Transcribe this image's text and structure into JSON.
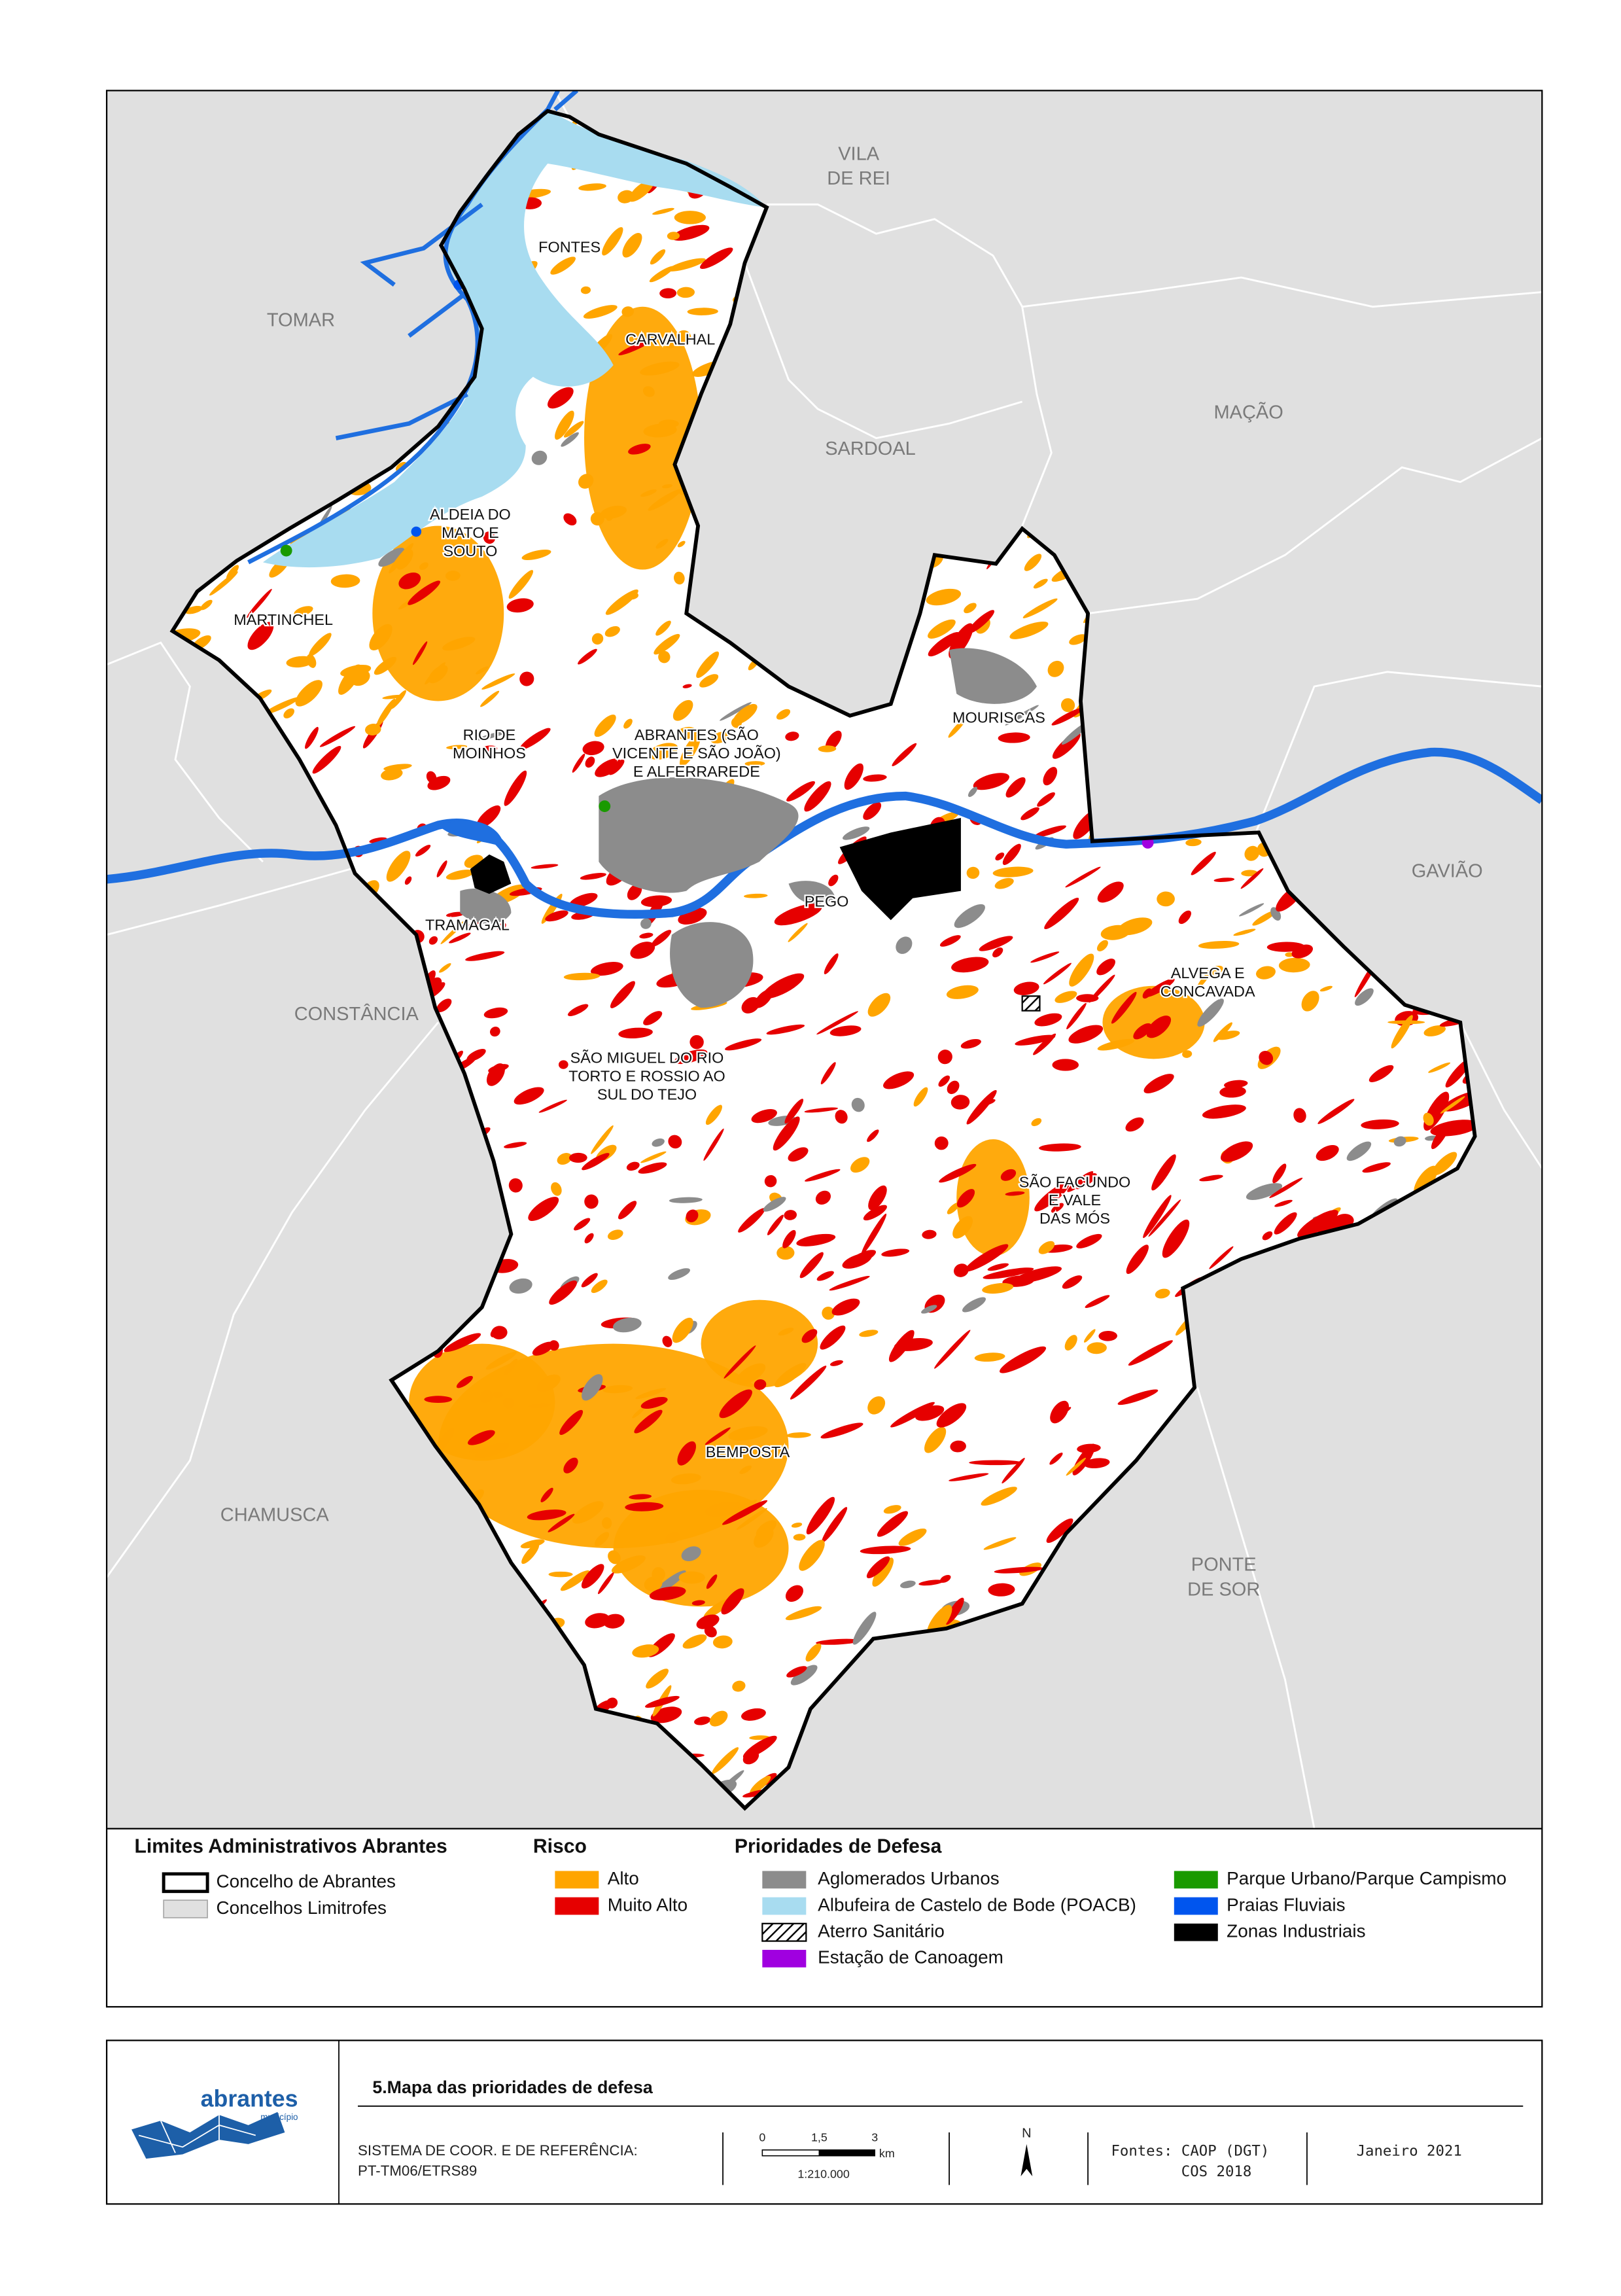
{
  "map": {
    "neighbors": [
      {
        "lines": [
          "TOMAR"
        ]
      },
      {
        "lines": [
          "VILA",
          "DE REI"
        ]
      },
      {
        "lines": [
          "MAÇÃO"
        ]
      },
      {
        "lines": [
          "SARDOAL"
        ]
      },
      {
        "lines": [
          "GAVIÃO"
        ]
      },
      {
        "lines": [
          "CONSTÂNCIA"
        ]
      },
      {
        "lines": [
          "CHAMUSCA"
        ]
      },
      {
        "lines": [
          "PONTE",
          "DE SOR"
        ]
      }
    ],
    "parishes": [
      {
        "lines": [
          "FONTES"
        ]
      },
      {
        "lines": [
          "CARVALHAL"
        ]
      },
      {
        "lines": [
          "ALDEIA DO",
          "MATO E",
          "SOUTO"
        ]
      },
      {
        "lines": [
          "MARTINCHEL"
        ]
      },
      {
        "lines": [
          "RIO DE",
          "MOINHOS"
        ]
      },
      {
        "lines": [
          "ABRANTES (SÃO",
          "VICENTE E SÃO JOÃO)",
          "E ALFERRAREDE"
        ]
      },
      {
        "lines": [
          "MOURISCAS"
        ]
      },
      {
        "lines": [
          "TRAMAGAL"
        ]
      },
      {
        "lines": [
          "PEGO"
        ]
      },
      {
        "lines": [
          "ALVEGA E",
          "CONCAVADA"
        ]
      },
      {
        "lines": [
          "SÃO MIGUEL DO RIO",
          "TORTO E ROSSIO AO",
          "SUL DO TEJO"
        ]
      },
      {
        "lines": [
          "SÃO FACUNDO",
          "E VALE",
          "DAS MÓS"
        ]
      },
      {
        "lines": [
          "BEMPOSTA"
        ]
      }
    ]
  },
  "legend": {
    "groups": [
      {
        "title": "Limites Administrativos Abrantes",
        "items": [
          "Concelho de Abrantes",
          "Concelhos Limitrofes"
        ]
      },
      {
        "title": "Risco",
        "items": [
          "Alto",
          "Muito Alto"
        ]
      },
      {
        "title": "Prioridades de Defesa",
        "items": [
          "Aglomerados Urbanos",
          "Albufeira de Castelo de Bode (POACB)",
          "Aterro Sanitário",
          "Estação de Canoagem",
          "Parque Urbano/Parque Campismo",
          "Praias Fluviais",
          "Zonas Industriais"
        ]
      }
    ]
  },
  "footer": {
    "logo": "abrantes",
    "logo_sub": "município",
    "title": "5.Mapa das prioridades de defesa",
    "crs_label": "SISTEMA DE COOR. E DE REFERÊNCIA:",
    "crs": "PT-TM06/ETRS89",
    "scale_ticks": [
      "0",
      "1,5",
      "3"
    ],
    "scale_unit": "km",
    "scale": "1:210.000",
    "north": "N",
    "sources": [
      "Fontes: CAOP (DGT)",
      "COS 2018"
    ],
    "date": "Janeiro 2021"
  }
}
